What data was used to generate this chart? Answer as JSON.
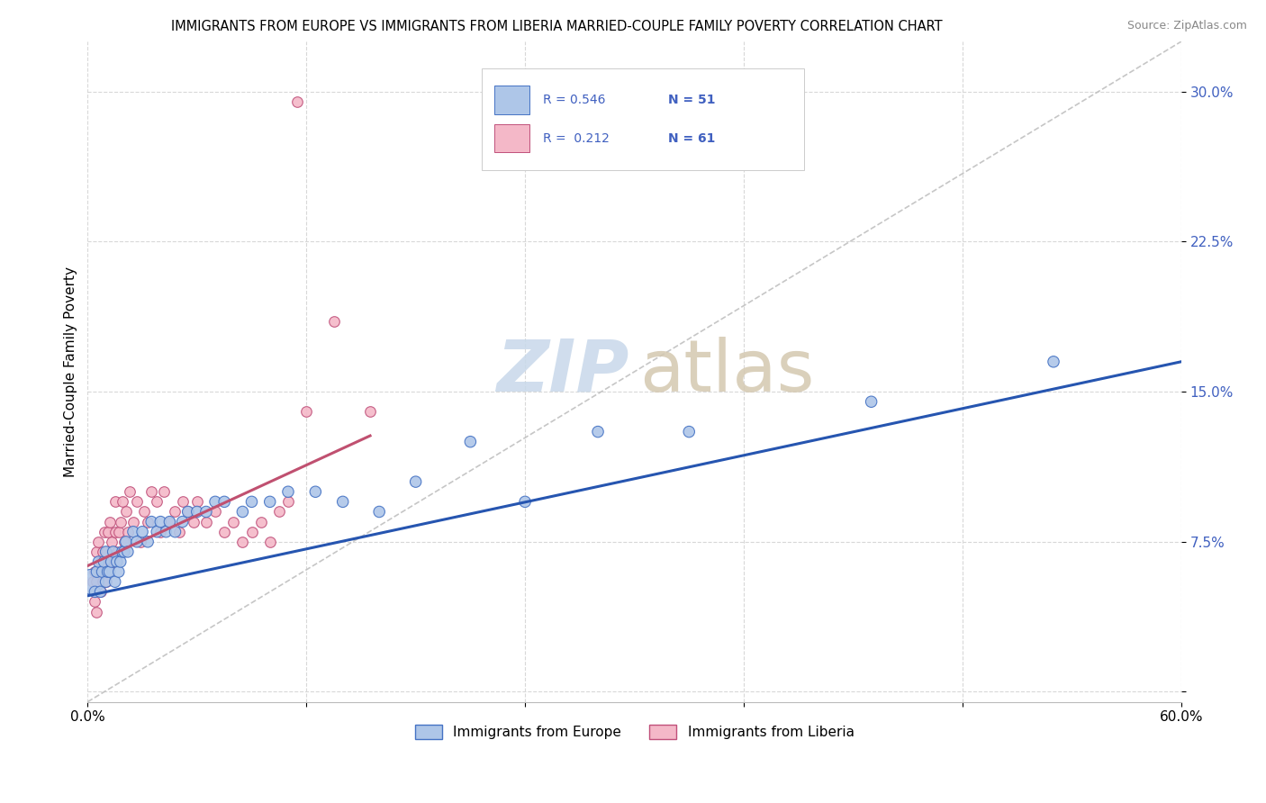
{
  "title": "IMMIGRANTS FROM EUROPE VS IMMIGRANTS FROM LIBERIA MARRIED-COUPLE FAMILY POVERTY CORRELATION CHART",
  "source": "Source: ZipAtlas.com",
  "ylabel": "Married-Couple Family Poverty",
  "xlim": [
    0.0,
    0.6
  ],
  "ylim": [
    -0.005,
    0.325
  ],
  "yticks": [
    0.0,
    0.075,
    0.15,
    0.225,
    0.3
  ],
  "ytick_labels": [
    "",
    "7.5%",
    "15.0%",
    "22.5%",
    "30.0%"
  ],
  "xticks": [
    0.0,
    0.12,
    0.24,
    0.36,
    0.48,
    0.6
  ],
  "xtick_labels": [
    "0.0%",
    "",
    "",
    "",
    "",
    "60.0%"
  ],
  "europe_fill": "#aec6e8",
  "europe_edge": "#4472c4",
  "liberia_fill": "#f4b8c8",
  "liberia_edge": "#c0507a",
  "trend_europe_color": "#2655b0",
  "trend_liberia_color": "#c05070",
  "diagonal_color": "#c0c0c0",
  "R_europe": "0.546",
  "N_europe": "51",
  "R_liberia": "0.212",
  "N_liberia": "61",
  "legend_text_color": "#4060c0",
  "europe_scatter_x": [
    0.002,
    0.004,
    0.005,
    0.006,
    0.007,
    0.008,
    0.009,
    0.01,
    0.01,
    0.011,
    0.012,
    0.013,
    0.014,
    0.015,
    0.016,
    0.017,
    0.018,
    0.019,
    0.02,
    0.021,
    0.022,
    0.025,
    0.027,
    0.03,
    0.033,
    0.035,
    0.038,
    0.04,
    0.043,
    0.045,
    0.048,
    0.052,
    0.055,
    0.06,
    0.065,
    0.07,
    0.075,
    0.085,
    0.09,
    0.1,
    0.11,
    0.125,
    0.14,
    0.16,
    0.18,
    0.21,
    0.24,
    0.28,
    0.33,
    0.43,
    0.53
  ],
  "europe_scatter_y": [
    0.055,
    0.05,
    0.06,
    0.065,
    0.05,
    0.06,
    0.065,
    0.055,
    0.07,
    0.06,
    0.06,
    0.065,
    0.07,
    0.055,
    0.065,
    0.06,
    0.065,
    0.07,
    0.07,
    0.075,
    0.07,
    0.08,
    0.075,
    0.08,
    0.075,
    0.085,
    0.08,
    0.085,
    0.08,
    0.085,
    0.08,
    0.085,
    0.09,
    0.09,
    0.09,
    0.095,
    0.095,
    0.09,
    0.095,
    0.095,
    0.1,
    0.1,
    0.095,
    0.09,
    0.105,
    0.125,
    0.095,
    0.13,
    0.13,
    0.145,
    0.165
  ],
  "europe_scatter_size": [
    400,
    80,
    80,
    80,
    80,
    80,
    80,
    80,
    80,
    80,
    80,
    80,
    80,
    80,
    80,
    80,
    80,
    80,
    80,
    80,
    80,
    80,
    80,
    80,
    80,
    80,
    80,
    80,
    80,
    80,
    80,
    80,
    80,
    80,
    80,
    80,
    80,
    80,
    80,
    80,
    80,
    80,
    80,
    80,
    80,
    80,
    80,
    80,
    80,
    80,
    80
  ],
  "liberia_scatter_x": [
    0.003,
    0.004,
    0.004,
    0.005,
    0.005,
    0.005,
    0.006,
    0.006,
    0.007,
    0.007,
    0.008,
    0.008,
    0.009,
    0.009,
    0.01,
    0.01,
    0.011,
    0.012,
    0.012,
    0.013,
    0.014,
    0.015,
    0.015,
    0.016,
    0.017,
    0.018,
    0.019,
    0.02,
    0.021,
    0.022,
    0.023,
    0.025,
    0.027,
    0.029,
    0.031,
    0.033,
    0.035,
    0.038,
    0.04,
    0.042,
    0.045,
    0.048,
    0.05,
    0.052,
    0.055,
    0.058,
    0.06,
    0.065,
    0.07,
    0.075,
    0.08,
    0.085,
    0.09,
    0.095,
    0.1,
    0.105,
    0.11,
    0.115,
    0.12,
    0.135,
    0.155
  ],
  "liberia_scatter_y": [
    0.055,
    0.045,
    0.06,
    0.04,
    0.055,
    0.07,
    0.06,
    0.075,
    0.05,
    0.065,
    0.055,
    0.07,
    0.065,
    0.08,
    0.055,
    0.07,
    0.08,
    0.065,
    0.085,
    0.075,
    0.065,
    0.08,
    0.095,
    0.07,
    0.08,
    0.085,
    0.095,
    0.075,
    0.09,
    0.08,
    0.1,
    0.085,
    0.095,
    0.075,
    0.09,
    0.085,
    0.1,
    0.095,
    0.08,
    0.1,
    0.085,
    0.09,
    0.08,
    0.095,
    0.09,
    0.085,
    0.095,
    0.085,
    0.09,
    0.08,
    0.085,
    0.075,
    0.08,
    0.085,
    0.075,
    0.09,
    0.095,
    0.295,
    0.14,
    0.185,
    0.14
  ],
  "eu_trend_x0": 0.0,
  "eu_trend_y0": 0.048,
  "eu_trend_x1": 0.6,
  "eu_trend_y1": 0.165,
  "lib_trend_x0": 0.0,
  "lib_trend_y0": 0.063,
  "lib_trend_x1": 0.155,
  "lib_trend_y1": 0.128
}
